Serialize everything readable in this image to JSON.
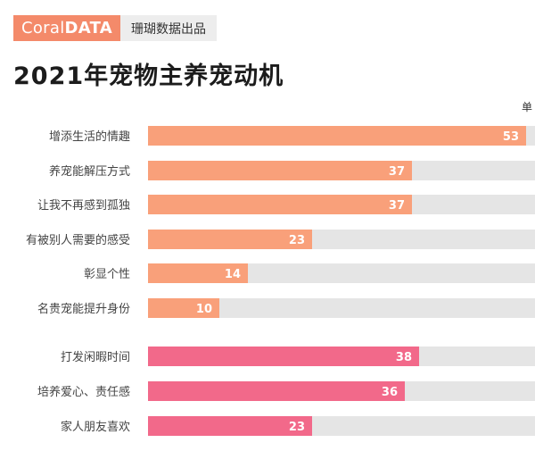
{
  "header": {
    "brand_regular": "Coral",
    "brand_bold": "DATA",
    "tagline": "珊瑚数据出品"
  },
  "chart_data": {
    "type": "bar",
    "orientation": "horizontal",
    "title": "2021年宠物主养宠动机",
    "unit_label": "单",
    "categories": [
      "增添生活的情趣",
      "养宠能解压方式",
      "让我不再感到孤独",
      "有被别人需要的感受",
      "彰显个性",
      "名贵宠能提升身份",
      "打发闲暇时间",
      "培养爱心、责任感",
      "家人朋友喜欢"
    ],
    "values": [
      53,
      37,
      37,
      23,
      14,
      10,
      38,
      36,
      23
    ],
    "groups": [
      {
        "color": "#f9a07a",
        "indices": [
          0,
          1,
          2,
          3,
          4,
          5
        ]
      },
      {
        "color": "#f2698a",
        "indices": [
          6,
          7,
          8
        ]
      }
    ],
    "track_color": "#e5e5e5",
    "xlim": [
      0,
      55
    ],
    "grid": false,
    "legend": "none"
  }
}
